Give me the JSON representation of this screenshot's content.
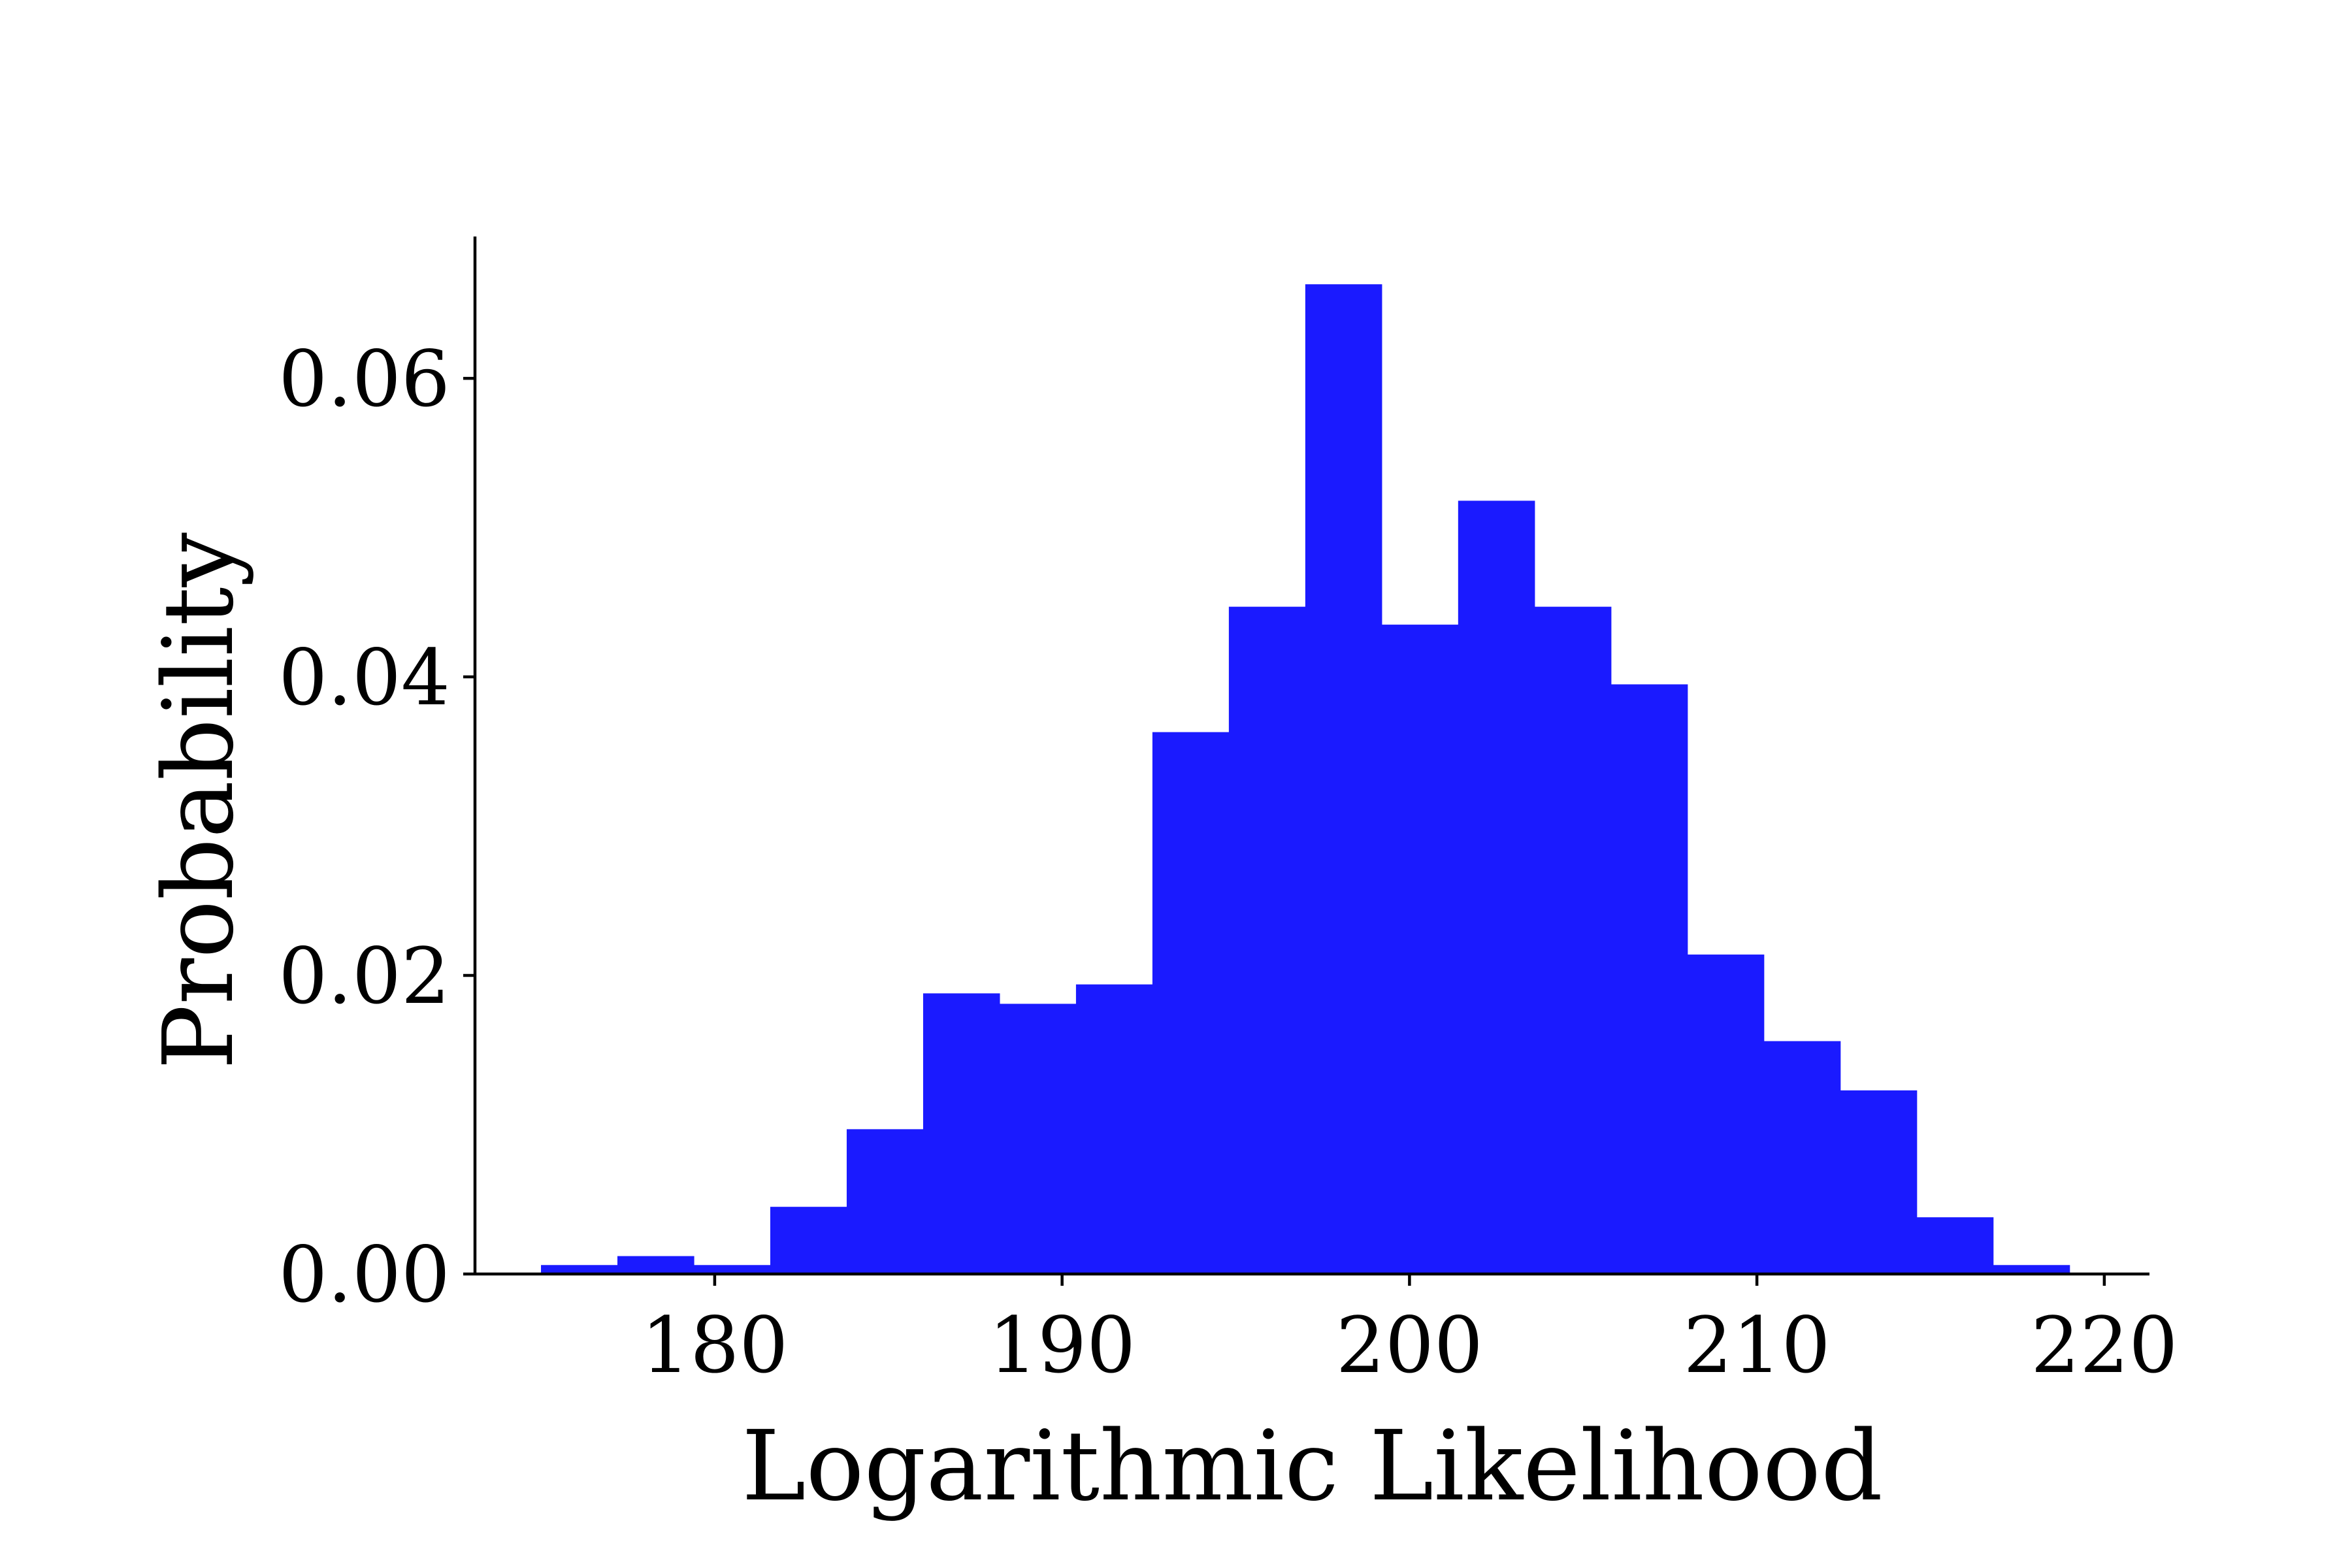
{
  "chart_data": {
    "type": "bar",
    "subtype": "histogram",
    "title": "",
    "xlabel": "Logarithmic Likelihood",
    "ylabel": "Probability",
    "xlim": [
      173.1,
      221.3
    ],
    "ylim": [
      0.0,
      0.0695
    ],
    "xticks": [
      180,
      190,
      200,
      210,
      220
    ],
    "xtick_labels": [
      "180",
      "190",
      "200",
      "210",
      "220"
    ],
    "yticks": [
      0.0,
      0.02,
      0.04,
      0.06
    ],
    "ytick_labels": [
      "0.00",
      "0.02",
      "0.04",
      "0.06"
    ],
    "grid": false,
    "spines": [
      "left",
      "bottom"
    ],
    "bar_color": "#1a1aff",
    "bin_edges": [
      175.0,
      177.2,
      179.4,
      181.6,
      183.8,
      186.0,
      188.2,
      190.4,
      192.6,
      194.8,
      197.0,
      199.2,
      201.4,
      203.6,
      205.8,
      208.0,
      210.2,
      212.4,
      214.6,
      216.8,
      219.0
    ],
    "values": [
      0.0006,
      0.0012,
      0.0006,
      0.0045,
      0.0097,
      0.0188,
      0.0181,
      0.0194,
      0.0363,
      0.0447,
      0.0663,
      0.0435,
      0.0518,
      0.0447,
      0.0395,
      0.0214,
      0.0156,
      0.0123,
      0.0038,
      0.0006
    ]
  }
}
